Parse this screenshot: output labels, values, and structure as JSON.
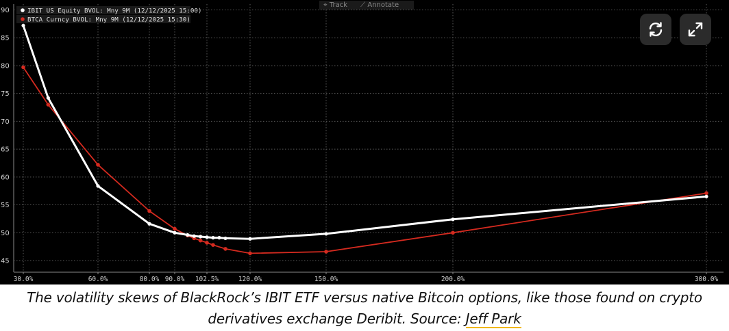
{
  "toolbar": {
    "track_label": "Track",
    "annotate_label": "Annotate",
    "refresh_icon": "refresh-icon",
    "expand_icon": "expand-icon"
  },
  "caption": {
    "text": "The volatility skews of BlackRock’s IBIT ETF versus native Bitcoin options, like those found on crypto derivatives exchange Deribit. Source: ",
    "link_text": "Jeff Park"
  },
  "colors": {
    "background": "#000000",
    "grid": "#5a5a5a",
    "axis_text": "#d0d0d0",
    "ibit": "#ffffff",
    "btca": "#d42a1f",
    "link_underline": "#f2b705"
  },
  "chart_data": {
    "type": "line",
    "title": "",
    "xlabel": "",
    "ylabel": "",
    "x_ticks": [
      {
        "value": 30,
        "label": "30.0%"
      },
      {
        "value": 60,
        "label": "60.0%"
      },
      {
        "value": 80,
        "label": "80.0%"
      },
      {
        "value": 90,
        "label": "90.0%"
      },
      {
        "value": 102.5,
        "label": "102.5%"
      },
      {
        "value": 120,
        "label": "120.0%"
      },
      {
        "value": 150,
        "label": "150.0%"
      },
      {
        "value": 200,
        "label": "200.0%"
      },
      {
        "value": 300,
        "label": "300.0%"
      }
    ],
    "y_ticks": [
      45,
      50,
      55,
      60,
      65,
      70,
      75,
      80,
      85,
      90
    ],
    "xlim": [
      28,
      305
    ],
    "ylim": [
      43.5,
      91
    ],
    "grid": true,
    "legend_position": "top-left",
    "series": [
      {
        "name": "IBIT US Equity BVOL: Mny 9M (12/12/2025 15:00)",
        "color": "#ffffff",
        "x": [
          30,
          40,
          60,
          80,
          90,
          95,
          97.5,
          100,
          102.5,
          105,
          107.5,
          110,
          120,
          150,
          200,
          300
        ],
        "y": [
          87.2,
          74.2,
          58.4,
          51.6,
          50.0,
          49.6,
          49.4,
          49.3,
          49.2,
          49.1,
          49.1,
          49.0,
          48.9,
          49.8,
          52.4,
          56.5
        ]
      },
      {
        "name": "BTCA Curncy BVOL: Mny 9M (12/12/2025 15:30)",
        "color": "#d42a1f",
        "x": [
          30,
          40,
          60,
          80,
          90,
          95,
          97.5,
          100,
          102.5,
          105,
          110,
          120,
          150,
          200,
          300
        ],
        "y": [
          79.7,
          73.0,
          62.2,
          53.9,
          50.7,
          49.5,
          49.0,
          48.6,
          48.2,
          47.8,
          47.1,
          46.3,
          46.6,
          50.0,
          57.1
        ]
      }
    ]
  }
}
